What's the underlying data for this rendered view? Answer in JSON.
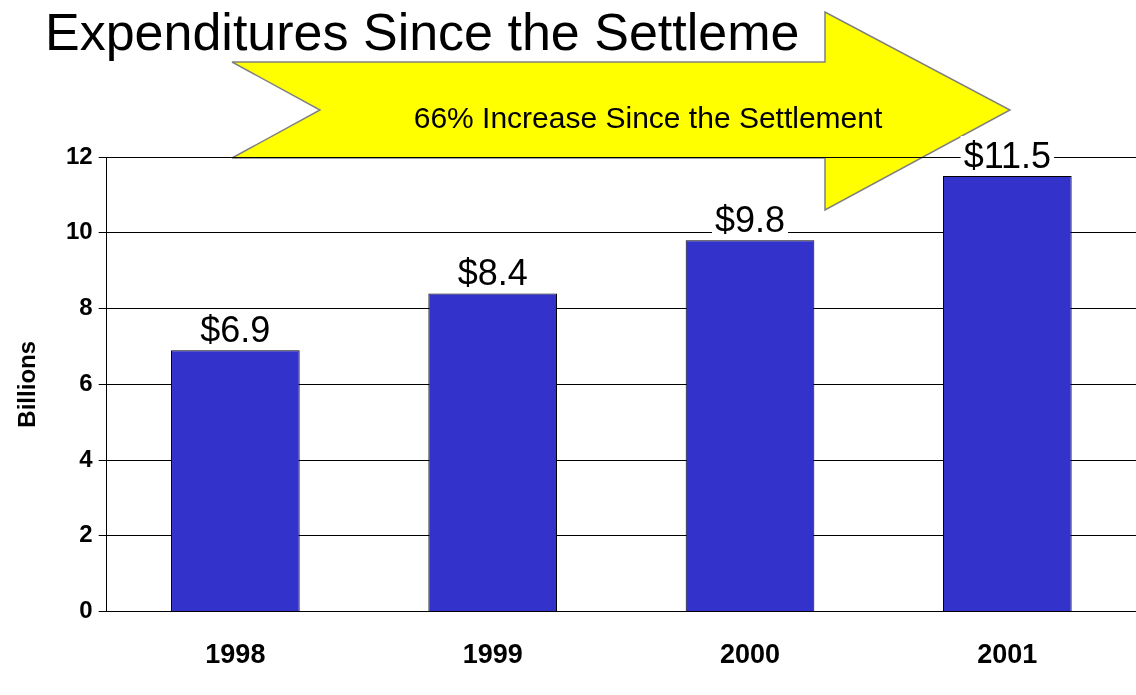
{
  "chart_data": {
    "type": "bar",
    "title": "Expenditures Since the Settleme",
    "ylabel": "Billions",
    "categories": [
      "1998",
      "1999",
      "2000",
      "2001"
    ],
    "values": [
      6.9,
      8.4,
      9.8,
      11.5
    ],
    "value_labels": [
      "$6.9",
      "$8.4",
      "$9.8",
      "$11.5"
    ],
    "color": "#3333cc",
    "ylim": [
      0,
      12
    ],
    "yticks": [
      0,
      2,
      4,
      6,
      8,
      10,
      12
    ],
    "grid": "y",
    "legend": false,
    "annotations": [
      "66% Increase Since the Settlement"
    ]
  }
}
